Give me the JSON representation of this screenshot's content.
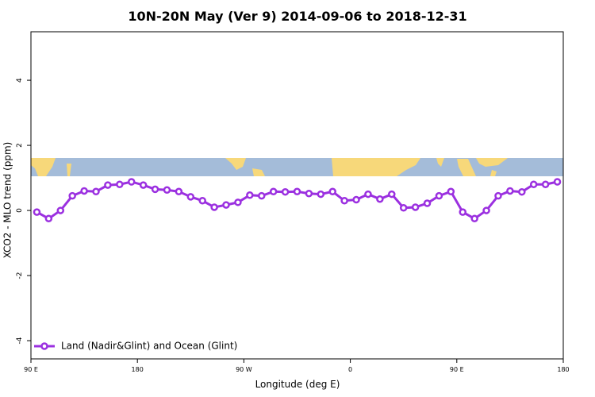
{
  "chart_data": {
    "type": "line",
    "title": "10N-20N May (Ver 9)   2014-09-06 to 2018-12-31",
    "xlabel": "Longitude (deg E)",
    "ylabel": "XCO2 - MLO trend (ppm)",
    "x": [
      95,
      105,
      115,
      125,
      135,
      145,
      155,
      165,
      175,
      185,
      195,
      205,
      215,
      225,
      235,
      245,
      255,
      265,
      275,
      285,
      295,
      305,
      315,
      325,
      335,
      345,
      355,
      365,
      375,
      385,
      395,
      405,
      415,
      425,
      435,
      445,
      455,
      465,
      475,
      485,
      495,
      505,
      515,
      525,
      535
    ],
    "series": [
      {
        "name": "Land (Nadir&Glint) and Ocean (Glint)",
        "color": "#9b30e0",
        "values": [
          -0.05,
          -0.25,
          0.0,
          0.45,
          0.6,
          0.58,
          0.78,
          0.8,
          0.88,
          0.78,
          0.65,
          0.63,
          0.58,
          0.42,
          0.3,
          0.1,
          0.17,
          0.25,
          0.47,
          0.45,
          0.58,
          0.57,
          0.58,
          0.52,
          0.5,
          0.58,
          0.3,
          0.33,
          0.5,
          0.35,
          0.5,
          0.08,
          0.1,
          0.22,
          0.45,
          0.58,
          -0.05,
          -0.25,
          0.0,
          0.45,
          0.6,
          0.57,
          0.8,
          0.8,
          0.88
        ]
      }
    ],
    "xlim": [
      90,
      540
    ],
    "xticks": [
      {
        "value": 90,
        "label": "90 E"
      },
      {
        "value": 180,
        "label": "180"
      },
      {
        "value": 270,
        "label": "90 W"
      },
      {
        "value": 360,
        "label": "0"
      },
      {
        "value": 450,
        "label": "90 E"
      },
      {
        "value": 540,
        "label": "180"
      }
    ],
    "ylim": [
      -4.56,
      5.49
    ],
    "yticks": [
      -4,
      -2,
      0,
      2,
      4
    ],
    "grid": false,
    "legend": "bottomleft"
  }
}
